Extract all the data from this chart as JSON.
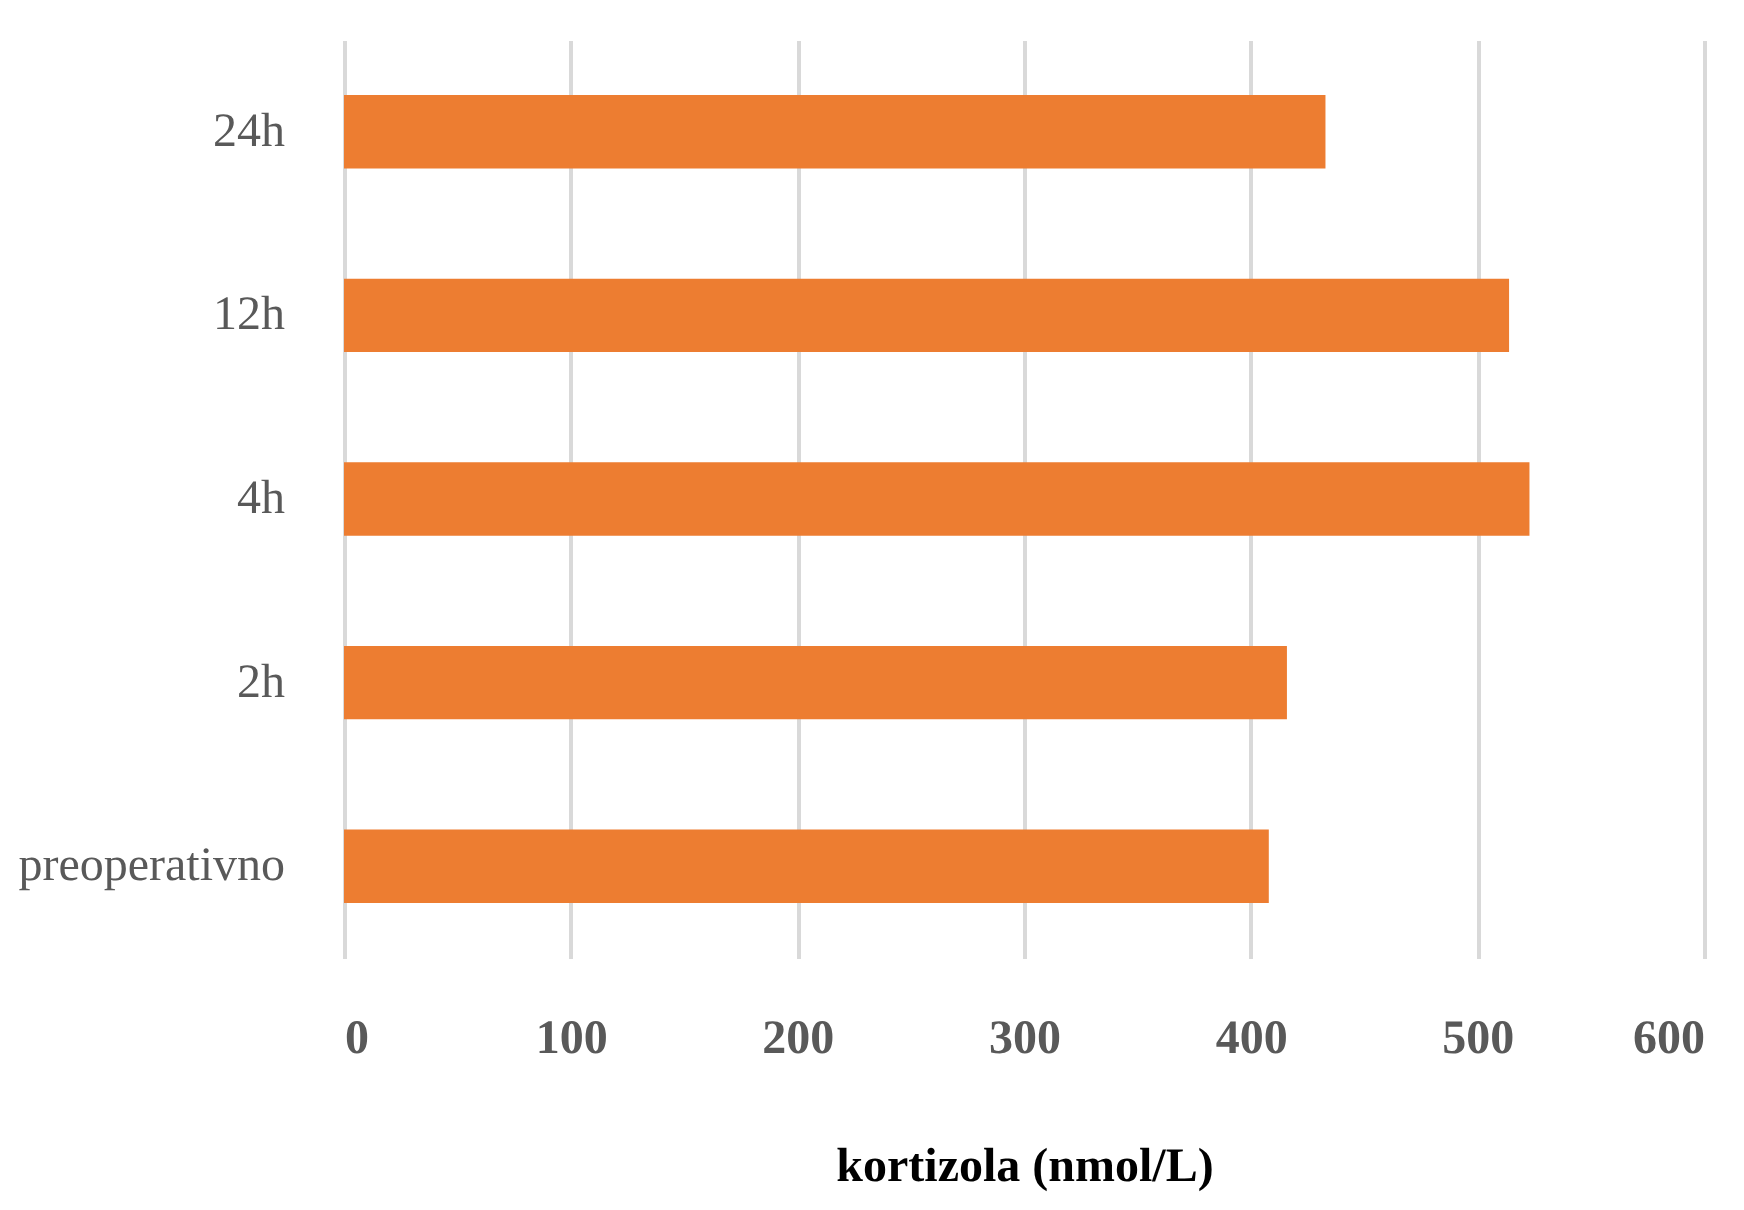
{
  "chart_data": {
    "type": "bar",
    "orientation": "horizontal",
    "xlabel": "kortizola (nmol/L)",
    "categories": [
      "24h",
      "12h",
      "4h",
      "2h",
      "preoperativno"
    ],
    "values": [
      433,
      514,
      523,
      416,
      408
    ],
    "color": "#ed7d31",
    "xlim": [
      0,
      600
    ],
    "xticks": [
      0,
      100,
      200,
      300,
      400,
      500,
      600
    ],
    "grid": "x"
  }
}
